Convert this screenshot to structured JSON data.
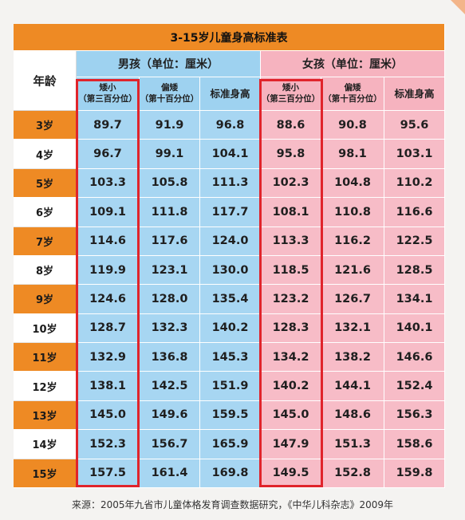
{
  "table": {
    "title": "3-15岁儿童身高标准表",
    "age_header": "年龄",
    "boys_header": "男孩（单位：厘米）",
    "girls_header": "女孩（单位：厘米）",
    "sub_headers": {
      "short_line1": "矮小",
      "short_line2": "（第三百分位）",
      "low_line1": "偏矮",
      "low_line2": "（第十百分位）",
      "standard": "标准身高"
    },
    "rows": [
      {
        "age": "3岁",
        "boy": [
          "89.7",
          "91.9",
          "96.8"
        ],
        "girl": [
          "88.6",
          "90.8",
          "95.6"
        ]
      },
      {
        "age": "4岁",
        "boy": [
          "96.7",
          "99.1",
          "104.1"
        ],
        "girl": [
          "95.8",
          "98.1",
          "103.1"
        ]
      },
      {
        "age": "5岁",
        "boy": [
          "103.3",
          "105.8",
          "111.3"
        ],
        "girl": [
          "102.3",
          "104.8",
          "110.2"
        ]
      },
      {
        "age": "6岁",
        "boy": [
          "109.1",
          "111.8",
          "117.7"
        ],
        "girl": [
          "108.1",
          "110.8",
          "116.6"
        ]
      },
      {
        "age": "7岁",
        "boy": [
          "114.6",
          "117.6",
          "124.0"
        ],
        "girl": [
          "113.3",
          "116.2",
          "122.5"
        ]
      },
      {
        "age": "8岁",
        "boy": [
          "119.9",
          "123.1",
          "130.0"
        ],
        "girl": [
          "118.5",
          "121.6",
          "128.5"
        ]
      },
      {
        "age": "9岁",
        "boy": [
          "124.6",
          "128.0",
          "135.4"
        ],
        "girl": [
          "123.2",
          "126.7",
          "134.1"
        ]
      },
      {
        "age": "10岁",
        "boy": [
          "128.7",
          "132.3",
          "140.2"
        ],
        "girl": [
          "128.3",
          "132.1",
          "140.1"
        ]
      },
      {
        "age": "11岁",
        "boy": [
          "132.9",
          "136.8",
          "145.3"
        ],
        "girl": [
          "134.2",
          "138.2",
          "146.6"
        ]
      },
      {
        "age": "12岁",
        "boy": [
          "138.1",
          "142.5",
          "151.9"
        ],
        "girl": [
          "140.2",
          "144.1",
          "152.4"
        ]
      },
      {
        "age": "13岁",
        "boy": [
          "145.0",
          "149.6",
          "159.5"
        ],
        "girl": [
          "145.0",
          "148.6",
          "156.3"
        ]
      },
      {
        "age": "14岁",
        "boy": [
          "152.3",
          "156.7",
          "165.9"
        ],
        "girl": [
          "147.9",
          "151.3",
          "158.6"
        ]
      },
      {
        "age": "15岁",
        "boy": [
          "157.5",
          "161.4",
          "169.8"
        ],
        "girl": [
          "149.5",
          "152.8",
          "159.8"
        ]
      }
    ]
  },
  "source": "来源：2005年九省市儿童体格发育调查数据研究，《中华儿科杂志》2009年",
  "colors": {
    "title_orange": "#ee8a24",
    "boy_blue": "#9ed2f0",
    "girl_pink": "#f6b3bf",
    "highlight_red": "#e0242b"
  }
}
